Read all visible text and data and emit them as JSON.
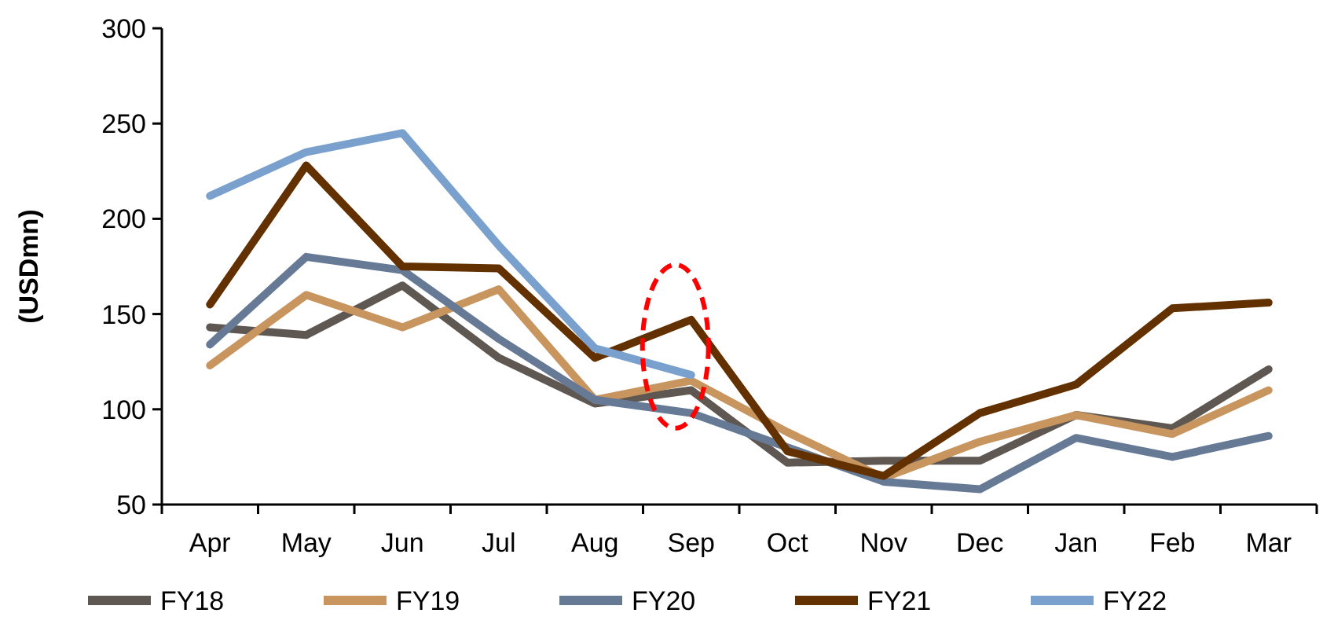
{
  "chart_data": {
    "type": "line",
    "ylabel": "(USDmn)",
    "categories": [
      "Apr",
      "May",
      "Jun",
      "Jul",
      "Aug",
      "Sep",
      "Oct",
      "Nov",
      "Dec",
      "Jan",
      "Feb",
      "Mar"
    ],
    "ylim": [
      50,
      300
    ],
    "yticks": [
      50,
      100,
      150,
      200,
      250,
      300
    ],
    "grid": false,
    "legend": "bottom",
    "marker": "none",
    "line_style": "solid",
    "series": [
      {
        "name": "FY18",
        "color": "#5f5752",
        "values": [
          143,
          139,
          165,
          127,
          103,
          110,
          72,
          73,
          73,
          97,
          90,
          121
        ]
      },
      {
        "name": "FY19",
        "color": "#c8955f",
        "values": [
          123,
          160,
          143,
          163,
          105,
          115,
          88,
          64,
          83,
          97,
          87,
          110
        ]
      },
      {
        "name": "FY20",
        "color": "#667a96",
        "values": [
          134,
          180,
          173,
          137,
          105,
          98,
          80,
          62,
          58,
          85,
          75,
          86
        ]
      },
      {
        "name": "FY21",
        "color": "#633100",
        "values": [
          155,
          228,
          175,
          174,
          127,
          147,
          78,
          65,
          98,
          113,
          153,
          156
        ]
      },
      {
        "name": "FY22",
        "color": "#7aa0cd",
        "values": [
          212,
          235,
          245,
          186,
          132,
          118,
          null,
          null,
          null,
          null,
          null,
          null
        ]
      }
    ]
  }
}
